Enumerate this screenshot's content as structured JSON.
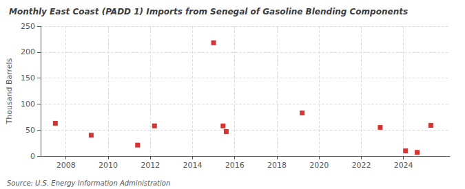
{
  "chart_data": {
    "type": "scatter",
    "title": "Monthly East Coast (PADD 1) Imports from Senegal of Gasoline Blending Components",
    "ylabel": "Thousand Barrels",
    "annotations": [
      "Source: U.S. Energy Information Administration"
    ],
    "x": [
      2007.5,
      2009.2,
      2011.4,
      2012.2,
      2015.0,
      2015.45,
      2015.6,
      2019.2,
      2022.9,
      2024.1,
      2024.65,
      2025.3
    ],
    "values": [
      63,
      40,
      21,
      58,
      218,
      58,
      47,
      83,
      55,
      10,
      7,
      59
    ],
    "color": "#cc0000",
    "marker": "square",
    "xlim": [
      2006.8,
      2026.2
    ],
    "xticks": [
      2008,
      2010,
      2012,
      2014,
      2016,
      2018,
      2020,
      2022,
      2024
    ],
    "ylim": [
      0,
      250
    ],
    "yticks": [
      0,
      50,
      100,
      150,
      200,
      250
    ],
    "grid": true
  }
}
